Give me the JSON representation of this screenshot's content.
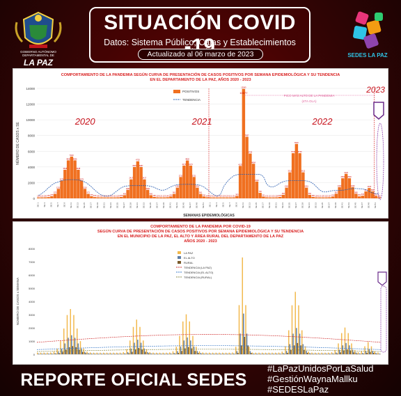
{
  "header": {
    "title": "SITUACIÓN COVID -19",
    "subtitle": "Datos: Sistema Público, Cajas y Establecimientos Privados",
    "updated": "Actualizado al  06 marzo de  2023",
    "gov_small": "GOBIERNO AUTÓNOMO DEPARTAMENTAL DE",
    "gov_big": "LA PAZ",
    "sedes_logo": "SEDES LA PAZ",
    "colors": {
      "accent": "#ffffff",
      "background": "#3a0505"
    }
  },
  "chart_data": [
    {
      "type": "bar",
      "title": "COMPORTAMIENTO DE LA PANDEMIA SEGÚN CURVA DE PRESENTACIÓN DE CASOS POSITIVOS POR SEMANA EPIDEMIOLÓGICA Y SU TENDENCIA",
      "subtitle": "EN EL DEPARTAMENTO DE LA PAZ, AÑOS 2020 - 2023",
      "xlabel": "SEMANAS EPIDEMIOLÓGICAS",
      "ylabel": "NÚMERO DE CASOS x SE",
      "ylim": [
        0,
        14000
      ],
      "yticks": [
        "14000",
        "12000",
        "10000",
        "8000",
        "6000",
        "4000",
        "2000",
        "0"
      ],
      "legend": [
        "POSITIVOS",
        "TENDENCIA"
      ],
      "legend_position": "top-center",
      "year_labels": [
        "2020",
        "2021",
        "2022",
        "2023"
      ],
      "annotation": "PICO MÁS ALTO DE LA PANDEMIA (4TA OLA)",
      "peak_label": "10577",
      "colors": {
        "bars": "#f07020",
        "trend": "#2a5db0",
        "labels": "#cc0000"
      },
      "waves": [
        {
          "center": 10,
          "peak": 5200,
          "width": 3.2
        },
        {
          "center": 30,
          "peak": 4600,
          "width": 2.4
        },
        {
          "center": 45,
          "peak": 4700,
          "width": 2.6
        },
        {
          "center": 62,
          "peak": 11800,
          "width": 0.9
        },
        {
          "center": 64,
          "peak": 5500,
          "width": 2.0
        },
        {
          "center": 78,
          "peak": 6800,
          "width": 2.3
        },
        {
          "center": 93,
          "peak": 3000,
          "width": 2.2
        },
        {
          "center": 100,
          "peak": 1200,
          "width": 1.5
        }
      ],
      "weeks": 104
    },
    {
      "type": "bar",
      "title": "COMPORTAMIENTO DE LA PANDEMIA POR COVID-19",
      "subtitle": "SEGÚN CURVA DE PRESENTACIÓN DE CASOS POSITIVOS POR SEMANA EPIDEMIOLÓGICA Y SU TENDENCIA",
      "subtitle2": "EN EL  MUNICIPIO DE LA PAZ, EL ALTO Y ÁREA RURAL DEL DEPARTAMENTO DE LA PAZ",
      "subtitle3": "AÑOS 2020 - 2023",
      "ylabel": "NÚMERO DE CASOS x SEMANA",
      "ylim": [
        0,
        8000
      ],
      "yticks": [
        "8000",
        "7000",
        "6000",
        "5000",
        "4000",
        "3000",
        "2000",
        "1000",
        "0"
      ],
      "legend": [
        "LA PAZ",
        "EL ALTO",
        "RURAL",
        "TENDENCIA (LA PAZ)",
        "TENDENCIA (EL ALTO)",
        "TENDENCIA (RURAL)"
      ],
      "legend_position": "top-center",
      "colors": {
        "lapaz": "#f2b84b",
        "elalto": "#5f7ea6",
        "rural": "#7a5a2a",
        "t_lapaz": "#d03030",
        "t_elalto": "#3a7ac8",
        "t_rural": "#8a8a4a"
      },
      "waves": [
        {
          "center": 10,
          "peak": 3300,
          "width": 2.6
        },
        {
          "center": 30,
          "peak": 2500,
          "width": 2.0
        },
        {
          "center": 45,
          "peak": 2900,
          "width": 2.2
        },
        {
          "center": 62,
          "peak": 7200,
          "width": 1.2
        },
        {
          "center": 78,
          "peak": 4600,
          "width": 2.0
        },
        {
          "center": 93,
          "peak": 1900,
          "width": 2.0
        },
        {
          "center": 100,
          "peak": 800,
          "width": 1.4
        }
      ],
      "weeks": 104
    }
  ],
  "footer": {
    "report": "REPORTE OFICIAL SEDES LA PAZ",
    "hashtags": [
      "#LaPazUnidosPorLaSalud",
      "#GestiónWaynaMallku",
      "#SEDESLaPaz"
    ]
  }
}
